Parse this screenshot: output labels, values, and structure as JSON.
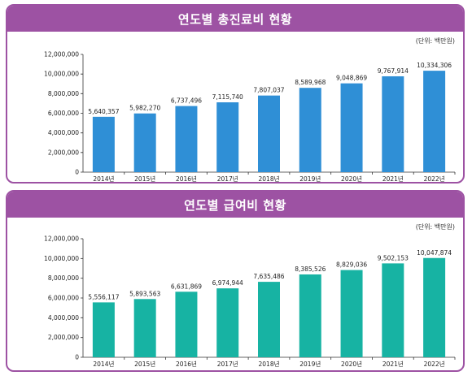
{
  "chart_data": [
    {
      "type": "bar",
      "title": "연도별 총진료비 현황",
      "unit": "(단위: 백만원)",
      "categories": [
        "2014년",
        "2015년",
        "2016년",
        "2017년",
        "2018년",
        "2019년",
        "2020년",
        "2021년",
        "2022년"
      ],
      "values": [
        5640357,
        5982270,
        6737496,
        7115740,
        7807037,
        8589968,
        9048869,
        9767914,
        10334306
      ],
      "value_labels": [
        "5,640,357",
        "5,982,270",
        "6,737,496",
        "7,115,740",
        "7,807,037",
        "8,589,968",
        "9,048,869",
        "9,767,914",
        "10,334,306"
      ],
      "yticks": [
        "0",
        "2,000,000",
        "4,000,000",
        "6,000,000",
        "8,000,000",
        "10,000,000",
        "12,000,000"
      ],
      "ylim": [
        0,
        12000000
      ],
      "color": "#2f8fd6",
      "grid": false,
      "xlabel": "",
      "ylabel": ""
    },
    {
      "type": "bar",
      "title": "연도별 급여비 현황",
      "unit": "(단위: 백만원)",
      "categories": [
        "2014년",
        "2015년",
        "2016년",
        "2017년",
        "2018년",
        "2019년",
        "2020년",
        "2021년",
        "2022년"
      ],
      "values": [
        5556117,
        5893563,
        6631869,
        6974944,
        7635486,
        8385526,
        8829036,
        9502153,
        10047874
      ],
      "value_labels": [
        "5,556,117",
        "5,893,563",
        "6,631,869",
        "6,974,944",
        "7,635,486",
        "8,385,526",
        "8,829,036",
        "9,502,153",
        "10,047,874"
      ],
      "yticks": [
        "0",
        "2,000,000",
        "4,000,000",
        "6,000,000",
        "8,000,000",
        "10,000,000",
        "12,000,000"
      ],
      "ylim": [
        0,
        12000000
      ],
      "color": "#17b3a3",
      "grid": false,
      "xlabel": "",
      "ylabel": ""
    }
  ]
}
